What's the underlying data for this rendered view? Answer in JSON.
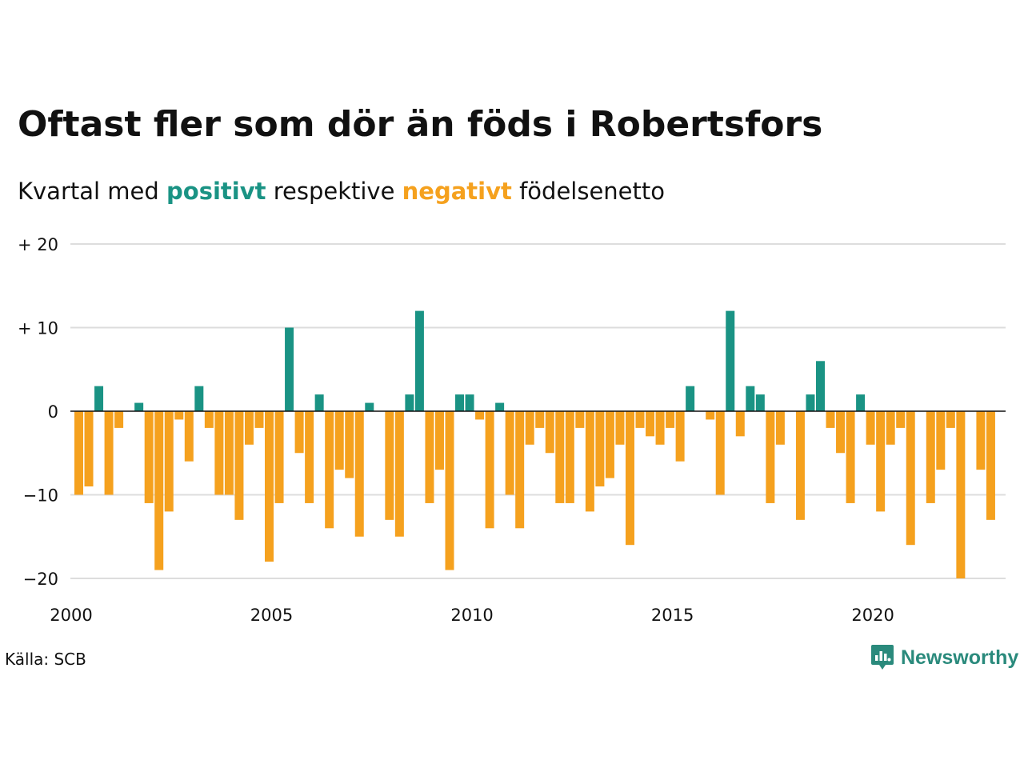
{
  "title": "Oftast fler som dör än föds i Robertsfors",
  "subtitle": {
    "prefix": "Kvartal med",
    "positive": "positivt",
    "middle": "respektive",
    "negative": "negativt",
    "suffix": "födelsenetto"
  },
  "source": "Källa: SCB",
  "brand": {
    "name": "Newsworthy",
    "icon": "newsworthy-logo-icon"
  },
  "colors": {
    "positive": "#1a9384",
    "negative": "#f5a11e",
    "grid": "#dddddd",
    "zero": "#111111",
    "brand": "#2a8a7c"
  },
  "chart_data": {
    "type": "bar",
    "x_start": 2000,
    "x_step": 0.25,
    "xlim": [
      2000,
      2023.25
    ],
    "ylim": [
      -20,
      20
    ],
    "xticks": [
      {
        "value": 2000,
        "label": "2000"
      },
      {
        "value": 2005,
        "label": "2005"
      },
      {
        "value": 2010,
        "label": "2010"
      },
      {
        "value": 2015,
        "label": "2015"
      },
      {
        "value": 2020,
        "label": "2020"
      }
    ],
    "yticks": [
      {
        "value": 20,
        "label": "+ 20"
      },
      {
        "value": 10,
        "label": "+ 10"
      },
      {
        "value": 0,
        "label": "0"
      },
      {
        "value": -10,
        "label": "−10"
      },
      {
        "value": -20,
        "label": "−20"
      }
    ],
    "grid": true,
    "values": [
      -10,
      -9,
      3,
      -10,
      -2,
      0,
      1,
      -11,
      -19,
      -12,
      -1,
      -6,
      3,
      -2,
      -10,
      -10,
      -13,
      -4,
      -2,
      -18,
      -11,
      10,
      -5,
      -11,
      2,
      -14,
      -7,
      -8,
      -15,
      1,
      0,
      -13,
      -15,
      2,
      12,
      -11,
      -7,
      -19,
      2,
      2,
      -1,
      -14,
      1,
      -10,
      -14,
      -4,
      -2,
      -5,
      -11,
      -11,
      -2,
      -12,
      -9,
      -8,
      -4,
      -16,
      -2,
      -3,
      -4,
      -2,
      -6,
      3,
      0,
      -1,
      -10,
      12,
      -3,
      3,
      2,
      -11,
      -4,
      0,
      -13,
      2,
      6,
      -2,
      -5,
      -11,
      2,
      -4,
      -12,
      -4,
      -2,
      -16,
      0,
      -11,
      -7,
      -2,
      -20,
      0,
      -7,
      -13
    ]
  }
}
